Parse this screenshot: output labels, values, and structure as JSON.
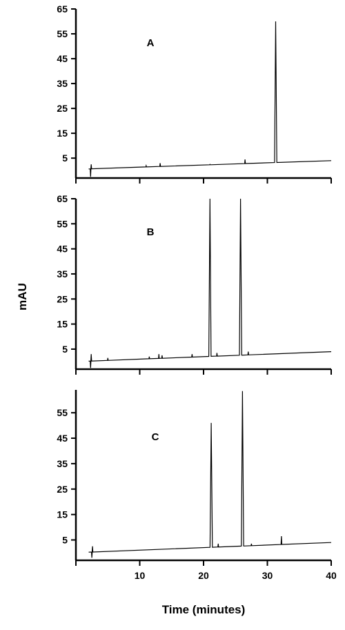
{
  "chart_data": {
    "type": "line",
    "xlabel": "Time (minutes)",
    "ylabel": "mAU",
    "xlim": [
      0,
      40
    ],
    "x_ticks": [
      "10",
      "20",
      "30",
      "40"
    ],
    "grid": false,
    "line_color": "#000000",
    "panels": [
      {
        "label": "A",
        "ylim": [
          -3,
          65
        ],
        "y_ticks": [
          "5",
          "15",
          "25",
          "35",
          "45",
          "55",
          "65"
        ],
        "baseline": {
          "x": [
            0,
            40
          ],
          "y": [
            0.5,
            4.0
          ]
        },
        "peaks": [
          {
            "x": 2.3,
            "y": -2.5,
            "type": "spike"
          },
          {
            "x": 2.4,
            "y": 2.5,
            "type": "spike"
          },
          {
            "x": 11.0,
            "y": 2.0,
            "type": "spike"
          },
          {
            "x": 13.2,
            "y": 3.0,
            "type": "spike"
          },
          {
            "x": 21.0,
            "y": 2.5,
            "type": "spike"
          },
          {
            "x": 26.5,
            "y": 4.5,
            "type": "spike"
          },
          {
            "x": 31.3,
            "y": 60.0,
            "type": "peak"
          }
        ]
      },
      {
        "label": "B",
        "ylim": [
          -3,
          65
        ],
        "y_ticks": [
          "5",
          "15",
          "25",
          "35",
          "45",
          "55",
          "65"
        ],
        "baseline": {
          "x": [
            0,
            40
          ],
          "y": [
            0.0,
            4.0
          ]
        },
        "peaks": [
          {
            "x": 2.3,
            "y": -2.5,
            "type": "spike"
          },
          {
            "x": 2.4,
            "y": 3.0,
            "type": "spike"
          },
          {
            "x": 5.0,
            "y": 1.5,
            "type": "spike"
          },
          {
            "x": 11.5,
            "y": 2.0,
            "type": "spike"
          },
          {
            "x": 13.0,
            "y": 3.0,
            "type": "spike"
          },
          {
            "x": 13.5,
            "y": 2.5,
            "type": "spike"
          },
          {
            "x": 18.2,
            "y": 3.0,
            "type": "spike"
          },
          {
            "x": 21.0,
            "y": 65.0,
            "type": "peak"
          },
          {
            "x": 22.1,
            "y": 3.5,
            "type": "spike"
          },
          {
            "x": 25.8,
            "y": 65.0,
            "type": "peak"
          },
          {
            "x": 27.0,
            "y": 4.0,
            "type": "spike"
          }
        ]
      },
      {
        "label": "C",
        "ylim": [
          -3,
          64
        ],
        "y_ticks": [
          "5",
          "15",
          "25",
          "35",
          "45",
          "55"
        ],
        "baseline": {
          "x": [
            0,
            40
          ],
          "y": [
            0.0,
            4.0
          ]
        },
        "peaks": [
          {
            "x": 2.5,
            "y": -2.0,
            "type": "spike"
          },
          {
            "x": 2.6,
            "y": 2.5,
            "type": "spike"
          },
          {
            "x": 21.2,
            "y": 51.0,
            "type": "peak"
          },
          {
            "x": 22.3,
            "y": 3.5,
            "type": "spike"
          },
          {
            "x": 26.1,
            "y": 63.5,
            "type": "peak"
          },
          {
            "x": 27.5,
            "y": 3.5,
            "type": "spike"
          },
          {
            "x": 32.2,
            "y": 6.5,
            "type": "spike"
          }
        ]
      }
    ]
  }
}
